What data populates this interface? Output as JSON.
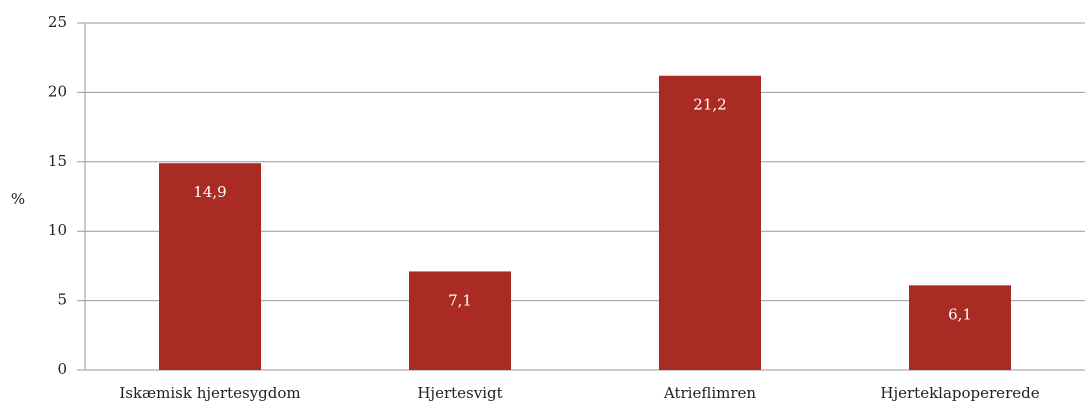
{
  "chart_data": {
    "type": "bar",
    "y_label": "%",
    "categories": [
      "Iskæmisk hjertesygdom",
      "Hjertesvigt",
      "Atrieflimren",
      "Hjerteklapopererede"
    ],
    "values": [
      14.9,
      7.1,
      21.2,
      6.1
    ],
    "value_labels": [
      "14,9",
      "7,1",
      "21,2",
      "6,1"
    ],
    "color": "#a92b24",
    "ylim": [
      0,
      25
    ],
    "yticks": [
      0,
      5,
      10,
      15,
      20,
      25
    ],
    "grid": true
  }
}
